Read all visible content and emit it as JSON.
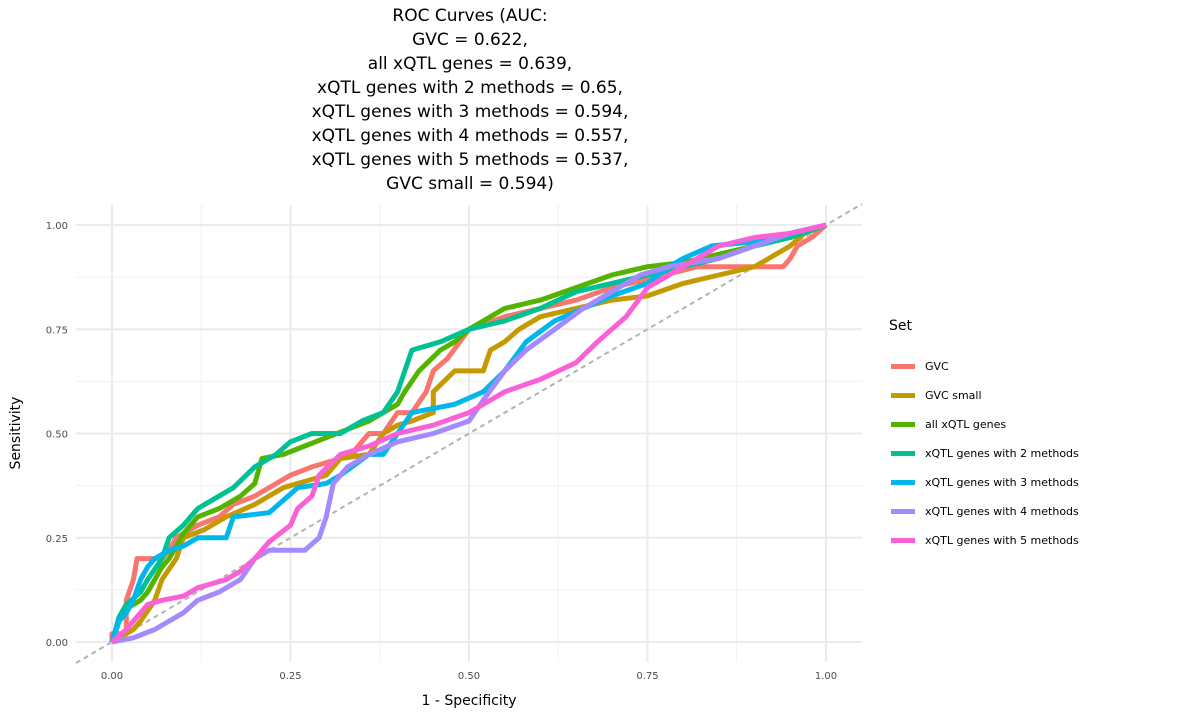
{
  "chart_data": {
    "type": "line",
    "title_lines": [
      "ROC Curves (AUC:",
      "GVC = 0.622,",
      "all xQTL genes = 0.639,",
      "xQTL genes with 2 methods = 0.65,",
      "xQTL genes with 3 methods = 0.594,",
      "xQTL genes with 4 methods = 0.557,",
      "xQTL genes with 5 methods = 0.537,",
      "GVC small = 0.594)"
    ],
    "xlabel": "1 - Specificity",
    "ylabel": "Sensitivity",
    "xlim": [
      0,
      1
    ],
    "ylim": [
      0,
      1
    ],
    "xticks": [
      "0.00",
      "0.25",
      "0.50",
      "0.75",
      "1.00"
    ],
    "yticks": [
      "0.00",
      "0.25",
      "0.50",
      "0.75",
      "1.00"
    ],
    "grid": true,
    "legend": {
      "title": "Set",
      "placement": "right"
    },
    "reference_line": {
      "style": "dashed",
      "color": "#b3b3b3",
      "from": [
        0,
        0
      ],
      "to": [
        1,
        1
      ]
    },
    "series": [
      {
        "name": "GVC",
        "color": "#F8766D",
        "points": [
          [
            0,
            0
          ],
          [
            0,
            0.02
          ],
          [
            0.02,
            0.02
          ],
          [
            0.02,
            0.1
          ],
          [
            0.03,
            0.15
          ],
          [
            0.035,
            0.2
          ],
          [
            0.07,
            0.2
          ],
          [
            0.08,
            0.22
          ],
          [
            0.09,
            0.25
          ],
          [
            0.12,
            0.28
          ],
          [
            0.15,
            0.3
          ],
          [
            0.17,
            0.33
          ],
          [
            0.2,
            0.35
          ],
          [
            0.25,
            0.4
          ],
          [
            0.28,
            0.42
          ],
          [
            0.32,
            0.44
          ],
          [
            0.33,
            0.45
          ],
          [
            0.34,
            0.45
          ],
          [
            0.34,
            0.46
          ],
          [
            0.35,
            0.48
          ],
          [
            0.36,
            0.5
          ],
          [
            0.38,
            0.5
          ],
          [
            0.4,
            0.55
          ],
          [
            0.42,
            0.55
          ],
          [
            0.44,
            0.6
          ],
          [
            0.45,
            0.65
          ],
          [
            0.47,
            0.68
          ],
          [
            0.5,
            0.75
          ],
          [
            0.55,
            0.78
          ],
          [
            0.6,
            0.8
          ],
          [
            0.65,
            0.82
          ],
          [
            0.7,
            0.85
          ],
          [
            0.75,
            0.87
          ],
          [
            0.82,
            0.9
          ],
          [
            0.86,
            0.9
          ],
          [
            0.9,
            0.9
          ],
          [
            0.92,
            0.9
          ],
          [
            0.94,
            0.9
          ],
          [
            0.95,
            0.92
          ],
          [
            0.96,
            0.95
          ],
          [
            0.98,
            0.97
          ],
          [
            1,
            1
          ]
        ]
      },
      {
        "name": "GVC small",
        "color": "#C49A00",
        "points": [
          [
            0,
            0
          ],
          [
            0.03,
            0.03
          ],
          [
            0.04,
            0.05
          ],
          [
            0.06,
            0.1
          ],
          [
            0.07,
            0.15
          ],
          [
            0.09,
            0.2
          ],
          [
            0.1,
            0.25
          ],
          [
            0.13,
            0.27
          ],
          [
            0.16,
            0.3
          ],
          [
            0.2,
            0.33
          ],
          [
            0.24,
            0.37
          ],
          [
            0.28,
            0.39
          ],
          [
            0.3,
            0.4
          ],
          [
            0.32,
            0.44
          ],
          [
            0.36,
            0.45
          ],
          [
            0.38,
            0.5
          ],
          [
            0.4,
            0.52
          ],
          [
            0.42,
            0.53
          ],
          [
            0.45,
            0.55
          ],
          [
            0.45,
            0.6
          ],
          [
            0.48,
            0.65
          ],
          [
            0.52,
            0.65
          ],
          [
            0.53,
            0.7
          ],
          [
            0.55,
            0.72
          ],
          [
            0.57,
            0.75
          ],
          [
            0.6,
            0.78
          ],
          [
            0.65,
            0.8
          ],
          [
            0.7,
            0.82
          ],
          [
            0.75,
            0.83
          ],
          [
            0.8,
            0.86
          ],
          [
            0.85,
            0.88
          ],
          [
            0.9,
            0.9
          ],
          [
            0.92,
            0.92
          ],
          [
            0.95,
            0.95
          ],
          [
            0.97,
            0.98
          ],
          [
            1,
            1
          ]
        ]
      },
      {
        "name": "all xQTL genes",
        "color": "#53B400",
        "points": [
          [
            0,
            0
          ],
          [
            0.01,
            0.05
          ],
          [
            0.02,
            0.08
          ],
          [
            0.04,
            0.1
          ],
          [
            0.05,
            0.12
          ],
          [
            0.06,
            0.15
          ],
          [
            0.07,
            0.18
          ],
          [
            0.08,
            0.2
          ],
          [
            0.09,
            0.23
          ],
          [
            0.1,
            0.26
          ],
          [
            0.12,
            0.3
          ],
          [
            0.15,
            0.32
          ],
          [
            0.18,
            0.35
          ],
          [
            0.2,
            0.38
          ],
          [
            0.21,
            0.44
          ],
          [
            0.24,
            0.45
          ],
          [
            0.27,
            0.47
          ],
          [
            0.3,
            0.49
          ],
          [
            0.33,
            0.51
          ],
          [
            0.36,
            0.53
          ],
          [
            0.4,
            0.57
          ],
          [
            0.41,
            0.6
          ],
          [
            0.43,
            0.65
          ],
          [
            0.46,
            0.7
          ],
          [
            0.48,
            0.72
          ],
          [
            0.5,
            0.75
          ],
          [
            0.55,
            0.8
          ],
          [
            0.6,
            0.82
          ],
          [
            0.65,
            0.85
          ],
          [
            0.7,
            0.88
          ],
          [
            0.75,
            0.9
          ],
          [
            0.8,
            0.91
          ],
          [
            0.85,
            0.93
          ],
          [
            0.9,
            0.95
          ],
          [
            0.95,
            0.97
          ],
          [
            1,
            1
          ]
        ]
      },
      {
        "name": "xQTL genes with 2 methods",
        "color": "#00C094",
        "points": [
          [
            0,
            0
          ],
          [
            0.01,
            0.06
          ],
          [
            0.02,
            0.09
          ],
          [
            0.04,
            0.12
          ],
          [
            0.05,
            0.15
          ],
          [
            0.07,
            0.2
          ],
          [
            0.08,
            0.25
          ],
          [
            0.1,
            0.28
          ],
          [
            0.12,
            0.32
          ],
          [
            0.14,
            0.34
          ],
          [
            0.17,
            0.37
          ],
          [
            0.2,
            0.42
          ],
          [
            0.23,
            0.45
          ],
          [
            0.25,
            0.48
          ],
          [
            0.28,
            0.5
          ],
          [
            0.32,
            0.5
          ],
          [
            0.35,
            0.53
          ],
          [
            0.38,
            0.55
          ],
          [
            0.4,
            0.6
          ],
          [
            0.42,
            0.7
          ],
          [
            0.46,
            0.72
          ],
          [
            0.5,
            0.75
          ],
          [
            0.55,
            0.77
          ],
          [
            0.6,
            0.8
          ],
          [
            0.65,
            0.84
          ],
          [
            0.7,
            0.86
          ],
          [
            0.75,
            0.88
          ],
          [
            0.8,
            0.9
          ],
          [
            0.85,
            0.92
          ],
          [
            0.9,
            0.95
          ],
          [
            0.95,
            0.97
          ],
          [
            1,
            1
          ]
        ]
      },
      {
        "name": "xQTL genes with 3 methods",
        "color": "#00B6EB",
        "points": [
          [
            0,
            0
          ],
          [
            0.01,
            0.05
          ],
          [
            0.02,
            0.07
          ],
          [
            0.03,
            0.1
          ],
          [
            0.04,
            0.15
          ],
          [
            0.05,
            0.18
          ],
          [
            0.06,
            0.2
          ],
          [
            0.08,
            0.22
          ],
          [
            0.1,
            0.23
          ],
          [
            0.12,
            0.25
          ],
          [
            0.16,
            0.25
          ],
          [
            0.17,
            0.3
          ],
          [
            0.22,
            0.31
          ],
          [
            0.24,
            0.34
          ],
          [
            0.26,
            0.37
          ],
          [
            0.3,
            0.38
          ],
          [
            0.32,
            0.4
          ],
          [
            0.36,
            0.45
          ],
          [
            0.38,
            0.45
          ],
          [
            0.4,
            0.5
          ],
          [
            0.42,
            0.55
          ],
          [
            0.48,
            0.57
          ],
          [
            0.52,
            0.6
          ],
          [
            0.55,
            0.65
          ],
          [
            0.58,
            0.72
          ],
          [
            0.62,
            0.77
          ],
          [
            0.66,
            0.8
          ],
          [
            0.7,
            0.83
          ],
          [
            0.75,
            0.86
          ],
          [
            0.78,
            0.9
          ],
          [
            0.8,
            0.92
          ],
          [
            0.84,
            0.95
          ],
          [
            0.9,
            0.96
          ],
          [
            0.95,
            0.98
          ],
          [
            1,
            1
          ]
        ]
      },
      {
        "name": "xQTL genes with 4 methods",
        "color": "#A58AFF",
        "points": [
          [
            0,
            0
          ],
          [
            0.03,
            0.01
          ],
          [
            0.06,
            0.03
          ],
          [
            0.08,
            0.05
          ],
          [
            0.1,
            0.07
          ],
          [
            0.12,
            0.1
          ],
          [
            0.15,
            0.12
          ],
          [
            0.18,
            0.15
          ],
          [
            0.2,
            0.2
          ],
          [
            0.22,
            0.22
          ],
          [
            0.27,
            0.22
          ],
          [
            0.29,
            0.25
          ],
          [
            0.3,
            0.3
          ],
          [
            0.31,
            0.38
          ],
          [
            0.33,
            0.42
          ],
          [
            0.36,
            0.45
          ],
          [
            0.4,
            0.48
          ],
          [
            0.45,
            0.5
          ],
          [
            0.5,
            0.53
          ],
          [
            0.52,
            0.58
          ],
          [
            0.55,
            0.65
          ],
          [
            0.58,
            0.7
          ],
          [
            0.62,
            0.75
          ],
          [
            0.66,
            0.8
          ],
          [
            0.7,
            0.84
          ],
          [
            0.74,
            0.88
          ],
          [
            0.78,
            0.9
          ],
          [
            0.85,
            0.92
          ],
          [
            0.9,
            0.95
          ],
          [
            0.95,
            0.98
          ],
          [
            1,
            1
          ]
        ]
      },
      {
        "name": "xQTL genes with 5 methods",
        "color": "#FB61D7",
        "points": [
          [
            0,
            0
          ],
          [
            0.02,
            0.03
          ],
          [
            0.03,
            0.05
          ],
          [
            0.04,
            0.07
          ],
          [
            0.05,
            0.09
          ],
          [
            0.07,
            0.1
          ],
          [
            0.1,
            0.11
          ],
          [
            0.12,
            0.13
          ],
          [
            0.16,
            0.15
          ],
          [
            0.18,
            0.17
          ],
          [
            0.2,
            0.2
          ],
          [
            0.22,
            0.24
          ],
          [
            0.25,
            0.28
          ],
          [
            0.26,
            0.32
          ],
          [
            0.28,
            0.35
          ],
          [
            0.29,
            0.4
          ],
          [
            0.32,
            0.45
          ],
          [
            0.36,
            0.47
          ],
          [
            0.4,
            0.5
          ],
          [
            0.45,
            0.52
          ],
          [
            0.5,
            0.55
          ],
          [
            0.55,
            0.6
          ],
          [
            0.6,
            0.63
          ],
          [
            0.65,
            0.67
          ],
          [
            0.68,
            0.72
          ],
          [
            0.72,
            0.78
          ],
          [
            0.75,
            0.85
          ],
          [
            0.8,
            0.9
          ],
          [
            0.85,
            0.95
          ],
          [
            0.9,
            0.97
          ],
          [
            0.95,
            0.98
          ],
          [
            1,
            1
          ]
        ]
      }
    ]
  }
}
